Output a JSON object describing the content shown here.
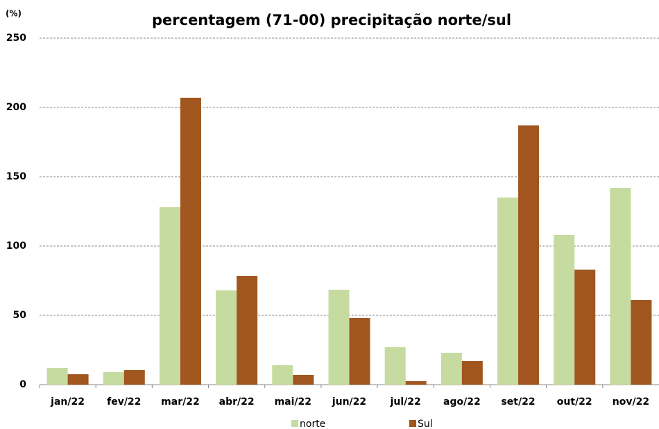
{
  "chart_data": {
    "type": "bar",
    "title": "percentagem (71-00) precipitação norte/sul",
    "y_label": "(%)",
    "categories": [
      "jan/22",
      "fev/22",
      "mar/22",
      "abr/22",
      "mai/22",
      "jun/22",
      "jul/22",
      "ago/22",
      "set/22",
      "out/22",
      "nov/22"
    ],
    "series": [
      {
        "name": "norte",
        "color": "#c6dba0",
        "values": [
          12,
          9,
          128,
          68,
          14,
          68.5,
          27,
          23,
          135,
          108,
          142
        ]
      },
      {
        "name": "Sul",
        "color": "#a0561e",
        "values": [
          7.5,
          10.5,
          207,
          78.5,
          7,
          48,
          2.5,
          17,
          187,
          83,
          61
        ]
      }
    ],
    "ylim": [
      0,
      250
    ],
    "yticks": [
      0,
      50,
      100,
      150,
      200,
      250
    ],
    "grid": true
  }
}
